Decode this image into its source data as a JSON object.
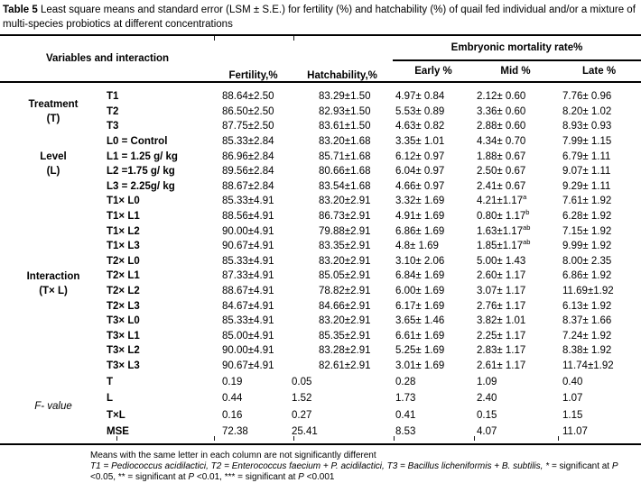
{
  "title": {
    "bold": "Table 5",
    "rest": " Least square means and standard error (LSM ± S.E.) for fertility (%) and hatchability (%) of quail fed individual and/or a mixture of multi-species probiotics at different concentrations"
  },
  "header": {
    "variables": "Variables and interaction",
    "fertility": "Fertility,%",
    "hatchability": "Hatchability,%",
    "embryonic": "Embryonic mortality rate%",
    "early": "Early %",
    "mid": "Mid %",
    "late": "Late %"
  },
  "sections": [
    {
      "label_lines": [
        "Treatment",
        "(T)"
      ],
      "italic": false,
      "fvalue": false,
      "rows": [
        {
          "label": "T1",
          "values": [
            "88.64±2.50",
            "83.29±1.50",
            "4.97± 0.84",
            "2.12± 0.60",
            "7.76± 0.96"
          ]
        },
        {
          "label": "T2",
          "values": [
            "86.50±2.50",
            "82.93±1.50",
            "5.53± 0.89",
            "3.36± 0.60",
            "8.20± 1.02"
          ]
        },
        {
          "label": "T3",
          "values": [
            "87.75±2.50",
            "83.61±1.50",
            "4.63± 0.82",
            "2.88± 0.60",
            "8.93± 0.93"
          ]
        }
      ]
    },
    {
      "label_lines": [
        "Level",
        "(L)"
      ],
      "italic": false,
      "fvalue": false,
      "rows": [
        {
          "label": "L0 = Control",
          "values": [
            "85.33±2.84",
            "83.20±1.68",
            "3.35± 1.01",
            "4.34± 0.70",
            "7.99± 1.15"
          ]
        },
        {
          "label": "L1 = 1.25 g/ kg",
          "values": [
            "86.96±2.84",
            "85.71±1.68",
            "6.12± 0.97",
            "1.88± 0.67",
            "6.79± 1.11"
          ]
        },
        {
          "label": "L2 =1.75 g/ kg",
          "values": [
            "89.56±2.84",
            "80.66±1.68",
            "6.04± 0.97",
            "2.50± 0.67",
            "9.07± 1.11"
          ]
        },
        {
          "label": "L3 = 2.25g/ kg",
          "values": [
            "88.67±2.84",
            "83.54±1.68",
            "4.66± 0.97",
            "2.41± 0.67",
            "9.29± 1.11"
          ]
        }
      ]
    },
    {
      "label_lines": [
        "Interaction",
        "(T× L)"
      ],
      "italic": false,
      "fvalue": false,
      "rows": [
        {
          "label": "T1× L0",
          "values": [
            "85.33±4.91",
            "83.20±2.91",
            "3.32± 1.69",
            "4.21±1.17^a",
            "7.61± 1.92"
          ]
        },
        {
          "label": "T1× L1",
          "values": [
            "88.56±4.91",
            "86.73±2.91",
            "4.91± 1.69",
            "0.80± 1.17^b",
            "6.28± 1.92"
          ]
        },
        {
          "label": "T1× L2",
          "values": [
            "90.00±4.91",
            "79.88±2.91",
            "6.86± 1.69",
            "1.63±1.17^ab",
            "7.15± 1.92"
          ]
        },
        {
          "label": "T1× L3",
          "values": [
            "90.67±4.91",
            "83.35±2.91",
            "4.8± 1.69",
            "1.85±1.17^ab",
            "9.99± 1.92"
          ]
        },
        {
          "label": "T2× L0",
          "values": [
            "85.33±4.91",
            "83.20±2.91",
            "3.10± 2.06",
            "5.00± 1.43",
            "8.00± 2.35"
          ]
        },
        {
          "label": "T2× L1",
          "values": [
            "87.33±4.91",
            "85.05±2.91",
            "6.84± 1.69",
            "2.60± 1.17",
            "6.86± 1.92"
          ]
        },
        {
          "label": "T2× L2",
          "values": [
            "88.67±4.91",
            "78.82±2.91",
            "6.00± 1.69",
            "3.07± 1.17",
            "11.69±1.92"
          ]
        },
        {
          "label": "T2× L3",
          "values": [
            "84.67±4.91",
            "84.66±2.91",
            "6.17± 1.69",
            "2.76± 1.17",
            "6.13± 1.92"
          ]
        },
        {
          "label": "T3× L0",
          "values": [
            "85.33±4.91",
            "83.20±2.91",
            "3.65± 1.46",
            "3.82± 1.01",
            "8.37± 1.66"
          ]
        },
        {
          "label": "T3× L1",
          "values": [
            "85.00±4.91",
            "85.35±2.91",
            "6.61± 1.69",
            "2.25± 1.17",
            "7.24± 1.92"
          ]
        },
        {
          "label": "T3× L2",
          "values": [
            "90.00±4.91",
            "83.28±2.91",
            "5.25± 1.69",
            "2.83± 1.17",
            "8.38± 1.92"
          ]
        },
        {
          "label": "T3× L3",
          "values": [
            "90.67±4.91",
            "82.61±2.91",
            "3.01± 1.69",
            "2.61± 1.17",
            "11.74±1.92"
          ]
        }
      ]
    },
    {
      "label_lines": [
        "F- value"
      ],
      "italic": true,
      "fvalue": true,
      "rows": [
        {
          "label": "T",
          "values": [
            "0.19",
            "0.05",
            "0.28",
            "1.09",
            "0.40"
          ]
        },
        {
          "label": "L",
          "values": [
            "0.44",
            "1.52",
            "1.73",
            "2.40",
            "1.07"
          ]
        },
        {
          "label": "T×L",
          "values": [
            "0.16",
            "0.27",
            "0.41",
            "0.15",
            "1.15"
          ]
        },
        {
          "label": "MSE",
          "values": [
            "72.38",
            "25.41",
            "8.53",
            "4.07",
            "11.07"
          ]
        }
      ]
    }
  ],
  "footnotes": {
    "line1": "Means with the same letter in each column are not significantly different",
    "line2_segments": [
      {
        "t": "T1 = Pediococcus acidilactici, T2 = Enterococcus faecium + P. acidilactici, T3 = Bacillus licheniformis + B. subtilis, * = ",
        "i": true
      },
      {
        "t": "significant at ",
        "i": false
      },
      {
        "t": "P",
        "i": true
      },
      {
        "t": " <0.05, ** = significant at ",
        "i": false
      },
      {
        "t": "P",
        "i": true
      },
      {
        "t": " <0.01, *** = significant at ",
        "i": false
      },
      {
        "t": "P",
        "i": true
      },
      {
        "t": " <0.001",
        "i": false
      }
    ]
  }
}
